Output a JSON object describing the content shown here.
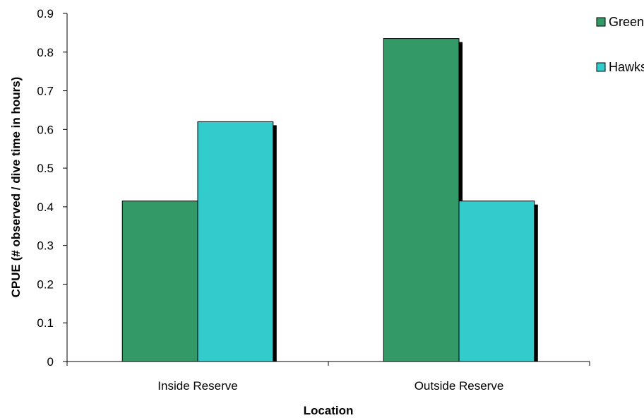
{
  "chart_data": {
    "type": "bar",
    "categories": [
      "Inside Reserve",
      "Outside Reserve"
    ],
    "series": [
      {
        "name": "Green",
        "values": [
          0.415,
          0.835
        ],
        "color": "#339966"
      },
      {
        "name": "Hawksbill",
        "values": [
          0.62,
          0.415
        ],
        "color": "#33CCCC"
      }
    ],
    "xlabel": "Location",
    "ylabel": "CPUE (# observed / dive time in hours)",
    "ylim": [
      0,
      0.9
    ],
    "yticks": [
      "0",
      "0.1",
      "0.2",
      "0.3",
      "0.4",
      "0.5",
      "0.6",
      "0.7",
      "0.8",
      "0.9"
    ],
    "grid": false,
    "legend_position": "top-right"
  }
}
